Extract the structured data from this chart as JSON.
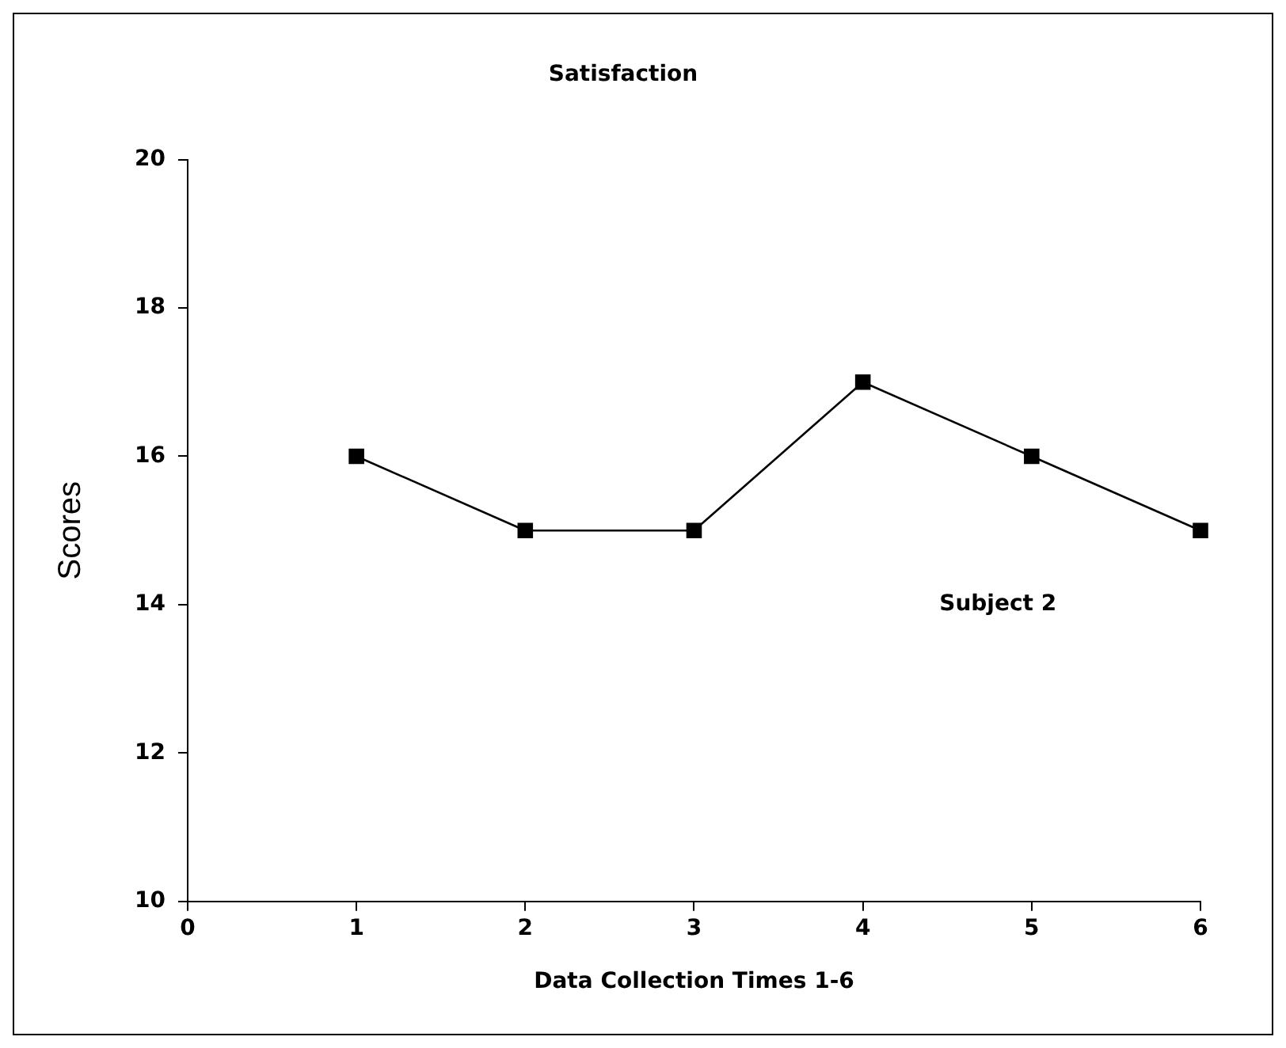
{
  "chart_data": {
    "type": "line",
    "title": "Satisfaction",
    "xlabel": "Data Collection Times 1-6",
    "ylabel": "Scores",
    "x": [
      1,
      2,
      3,
      4,
      5,
      6
    ],
    "series": [
      {
        "color": "#000000",
        "values": [
          16,
          15,
          15,
          17,
          16,
          15
        ]
      }
    ],
    "xlim": [
      0,
      6
    ],
    "xticks": [
      0,
      1,
      2,
      3,
      4,
      5,
      6
    ],
    "ylim": [
      10,
      20
    ],
    "yticks": [
      10,
      12,
      14,
      16,
      18,
      20
    ],
    "annotations": [
      "Subject 2"
    ],
    "grid": false,
    "legend": false,
    "marker": "square",
    "line_style": "solid"
  }
}
